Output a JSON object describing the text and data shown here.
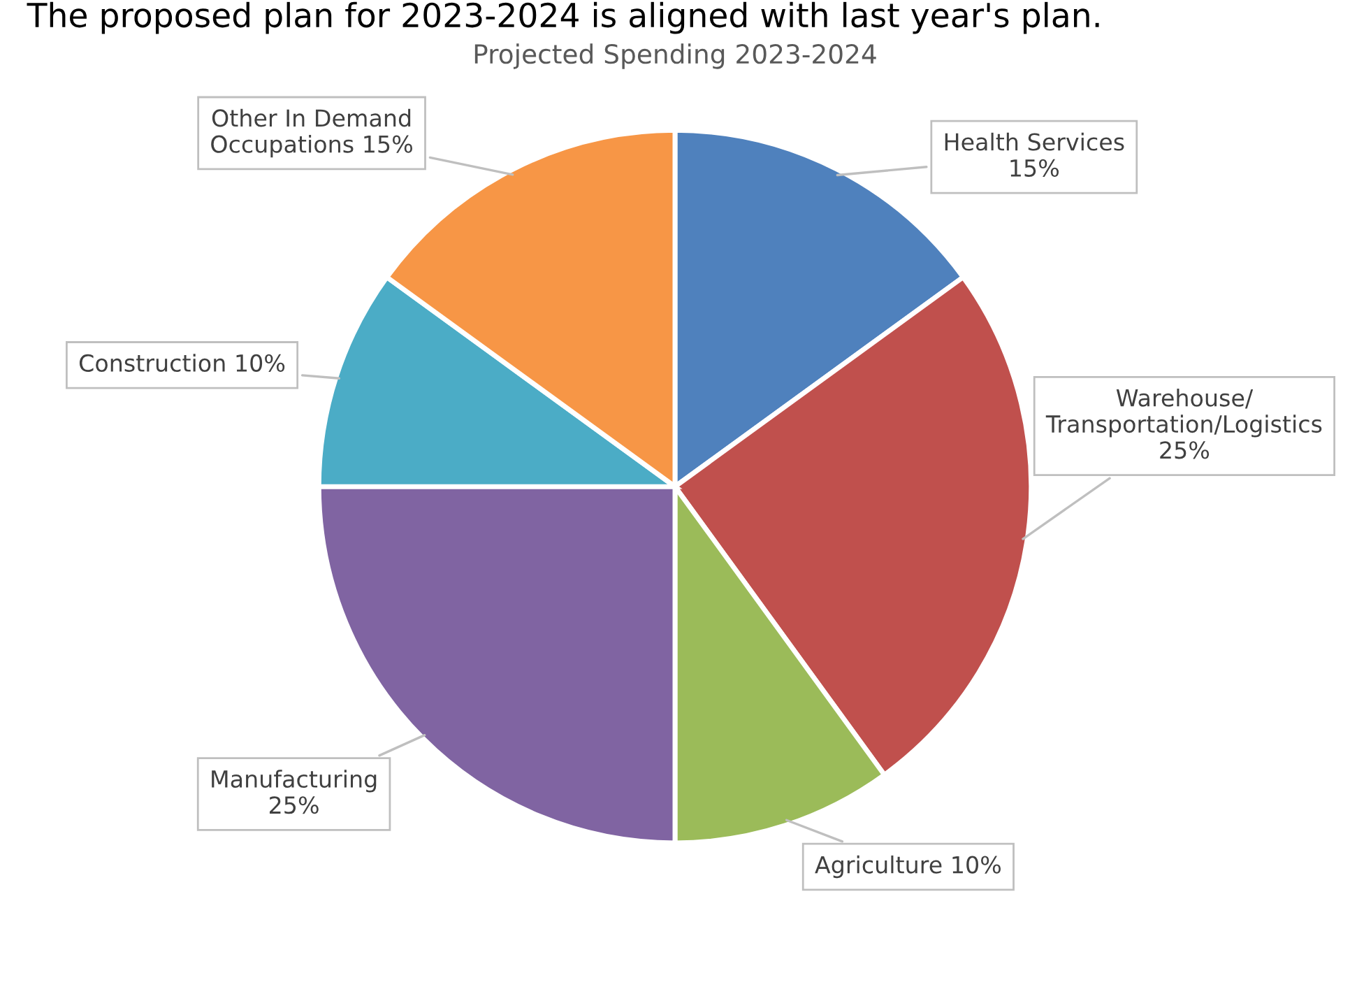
{
  "chart_data": {
    "type": "pie",
    "title": "Projected Spending 2023-2024",
    "annotations": [
      "The proposed plan for 2023-2024 is aligned with last year's plan."
    ],
    "categories": [
      "Health Services",
      "Warehouse/ Transportation/Logistics",
      "Agriculture",
      "Manufacturing",
      "Construction",
      "Other In Demand Occupations"
    ],
    "values": [
      15,
      25,
      10,
      25,
      10,
      15
    ],
    "colors": [
      "#4f81bd",
      "#c0504d",
      "#9bbb59",
      "#8064a2",
      "#4bacc6",
      "#f79646"
    ],
    "value_labels": [
      "15%",
      "25%",
      "10%",
      "25%",
      "10%",
      "15%"
    ],
    "legend": false
  }
}
